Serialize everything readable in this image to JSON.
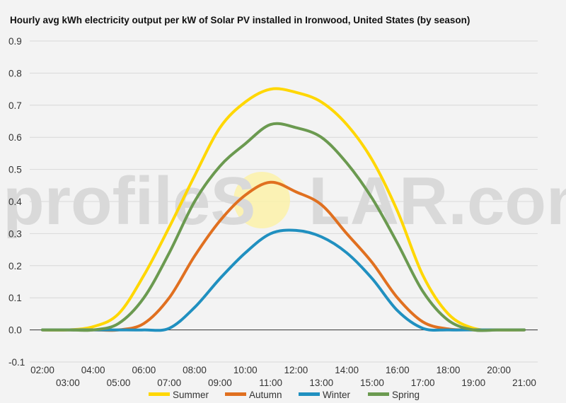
{
  "chart_data": {
    "type": "line",
    "title": "Hourly avg kWh electricity output per kW of Solar PV installed in Ironwood, United States (by season)",
    "watermark": {
      "prefix": "profileS",
      "o": "O",
      "suffix": "LAR.com"
    },
    "xlabel": "",
    "ylabel": "",
    "ylim": [
      -0.1,
      0.9
    ],
    "yticks": [
      "-0.1",
      "0.0",
      "0.1",
      "0.2",
      "0.3",
      "0.4",
      "0.5",
      "0.6",
      "0.7",
      "0.8",
      "0.9"
    ],
    "x": [
      "02:00",
      "03:00",
      "04:00",
      "05:00",
      "06:00",
      "07:00",
      "08:00",
      "09:00",
      "10:00",
      "11:00",
      "12:00",
      "13:00",
      "14:00",
      "15:00",
      "16:00",
      "17:00",
      "18:00",
      "19:00",
      "20:00",
      "21:00"
    ],
    "grid": true,
    "legend_position": "bottom",
    "series": [
      {
        "name": "Summer",
        "color": "#ffd700",
        "values": [
          0,
          0,
          0.01,
          0.05,
          0.17,
          0.32,
          0.48,
          0.63,
          0.71,
          0.75,
          0.74,
          0.71,
          0.64,
          0.53,
          0.37,
          0.17,
          0.05,
          0.005,
          0,
          0
        ]
      },
      {
        "name": "Autumn",
        "color": "#e07020",
        "values": [
          0,
          0,
          0,
          0,
          0.02,
          0.1,
          0.23,
          0.34,
          0.42,
          0.46,
          0.43,
          0.39,
          0.3,
          0.21,
          0.1,
          0.025,
          0.003,
          0,
          0,
          0
        ]
      },
      {
        "name": "Winter",
        "color": "#2090c0",
        "values": [
          0,
          0,
          0,
          0,
          0,
          0.005,
          0.07,
          0.16,
          0.24,
          0.3,
          0.31,
          0.29,
          0.24,
          0.16,
          0.06,
          0.005,
          0,
          0,
          0,
          0
        ]
      },
      {
        "name": "Spring",
        "color": "#6b9a50",
        "values": [
          0,
          0,
          0,
          0.02,
          0.1,
          0.24,
          0.4,
          0.51,
          0.58,
          0.64,
          0.63,
          0.6,
          0.52,
          0.41,
          0.27,
          0.12,
          0.03,
          0,
          0,
          0
        ]
      }
    ]
  }
}
